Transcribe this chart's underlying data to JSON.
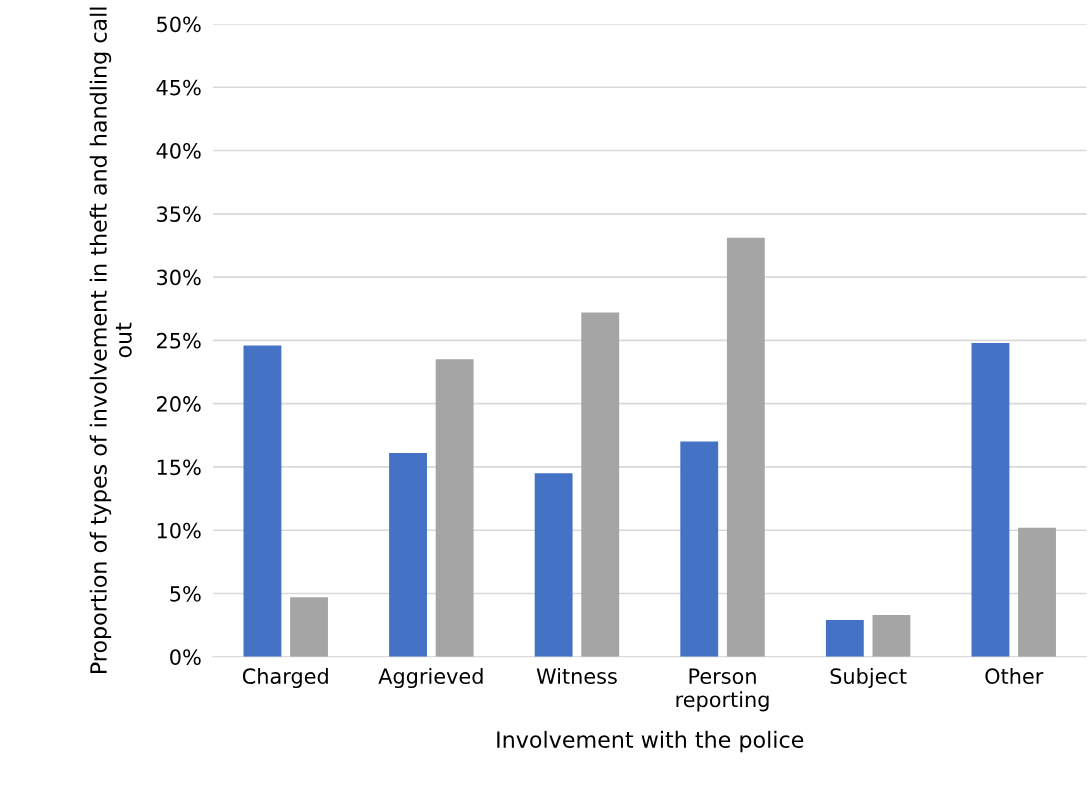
{
  "chart_data": {
    "type": "bar",
    "xlabel": "Involvement with the police",
    "ylabel": "Proportion of types of involvement in theft and handling call out",
    "categories": [
      "Charged",
      "Aggrieved",
      "Witness",
      "Person\nreporting",
      "Subject",
      "Other"
    ],
    "series": [
      {
        "color": "#4472c4",
        "values": [
          24.6,
          16.1,
          14.5,
          17.0,
          2.9,
          24.8
        ]
      },
      {
        "color": "#a5a5a5",
        "values": [
          4.7,
          23.5,
          27.2,
          33.1,
          3.3,
          10.2
        ]
      }
    ],
    "ylim": [
      0,
      50
    ],
    "yticks": [
      {
        "value": 0,
        "label": "0%"
      },
      {
        "value": 5,
        "label": "5%"
      },
      {
        "value": 10,
        "label": "10%"
      },
      {
        "value": 15,
        "label": "15%"
      },
      {
        "value": 20,
        "label": "20%"
      },
      {
        "value": 25,
        "label": "25%"
      },
      {
        "value": 30,
        "label": "30%"
      },
      {
        "value": 35,
        "label": "35%"
      },
      {
        "value": 40,
        "label": "40%"
      },
      {
        "value": 45,
        "label": "45%"
      },
      {
        "value": 50,
        "label": "50%"
      }
    ],
    "grid": "y"
  }
}
